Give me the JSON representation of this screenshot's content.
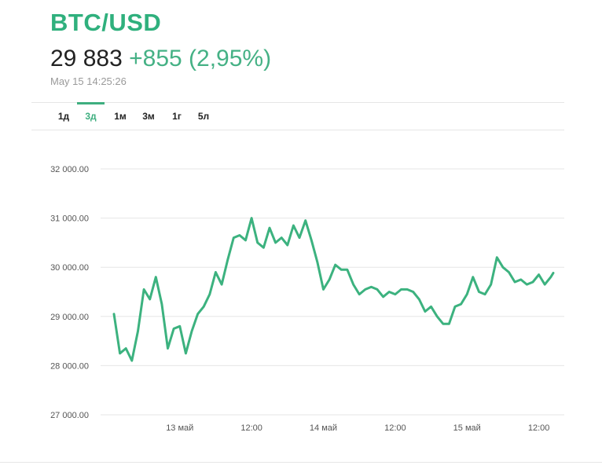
{
  "header": {
    "title": "BTC/USD",
    "price": "29 883",
    "change": "+855 (2,95%)",
    "timestamp": "May 15 14:25:26"
  },
  "tabs": [
    {
      "label": "1д",
      "active": false
    },
    {
      "label": "3д",
      "active": true
    },
    {
      "label": "1м",
      "active": false
    },
    {
      "label": "3м",
      "active": false
    },
    {
      "label": "1г",
      "active": false
    },
    {
      "label": "5л",
      "active": false
    }
  ],
  "colors": {
    "accent": "#3eae7f",
    "line": "#3cb27f",
    "grid": "#e6e6e6"
  },
  "chart_data": {
    "type": "line",
    "title": "",
    "xlabel": "",
    "ylabel": "",
    "ylim": [
      27000,
      32000
    ],
    "yticks": [
      32000,
      31000,
      30000,
      29000,
      28000,
      27000
    ],
    "ytick_labels": [
      "32 000.00",
      "31 000.00",
      "30 000.00",
      "29 000.00",
      "28 000.00",
      "27 000.00"
    ],
    "xlim": [
      "2023-05-12T13:00",
      "2023-05-15T14:25"
    ],
    "xticks": [
      "2023-05-13T00:00",
      "2023-05-13T12:00",
      "2023-05-14T00:00",
      "2023-05-14T12:00",
      "2023-05-15T00:00",
      "2023-05-15T12:00"
    ],
    "xtick_labels": [
      "13 май",
      "12:00",
      "14 май",
      "12:00",
      "15 май",
      "12:00"
    ],
    "grid": true,
    "series": [
      {
        "x": [
          "2023-05-12T13:00",
          "2023-05-12T14:00",
          "2023-05-12T15:00",
          "2023-05-12T16:00",
          "2023-05-12T17:00",
          "2023-05-12T18:00",
          "2023-05-12T19:00",
          "2023-05-12T20:00",
          "2023-05-12T21:00",
          "2023-05-12T22:00",
          "2023-05-12T23:00",
          "2023-05-13T00:00",
          "2023-05-13T01:00",
          "2023-05-13T02:00",
          "2023-05-13T03:00",
          "2023-05-13T04:00",
          "2023-05-13T05:00",
          "2023-05-13T06:00",
          "2023-05-13T07:00",
          "2023-05-13T08:00",
          "2023-05-13T09:00",
          "2023-05-13T10:00",
          "2023-05-13T11:00",
          "2023-05-13T12:00",
          "2023-05-13T13:00",
          "2023-05-13T14:00",
          "2023-05-13T15:00",
          "2023-05-13T16:00",
          "2023-05-13T17:00",
          "2023-05-13T18:00",
          "2023-05-13T19:00",
          "2023-05-13T20:00",
          "2023-05-13T21:00",
          "2023-05-13T22:00",
          "2023-05-13T23:00",
          "2023-05-14T00:00",
          "2023-05-14T01:00",
          "2023-05-14T02:00",
          "2023-05-14T03:00",
          "2023-05-14T04:00",
          "2023-05-14T05:00",
          "2023-05-14T06:00",
          "2023-05-14T07:00",
          "2023-05-14T08:00",
          "2023-05-14T09:00",
          "2023-05-14T10:00",
          "2023-05-14T11:00",
          "2023-05-14T12:00",
          "2023-05-14T13:00",
          "2023-05-14T14:00",
          "2023-05-14T15:00",
          "2023-05-14T16:00",
          "2023-05-14T17:00",
          "2023-05-14T18:00",
          "2023-05-14T19:00",
          "2023-05-14T20:00",
          "2023-05-14T21:00",
          "2023-05-14T22:00",
          "2023-05-14T23:00",
          "2023-05-15T00:00",
          "2023-05-15T01:00",
          "2023-05-15T02:00",
          "2023-05-15T03:00",
          "2023-05-15T04:00",
          "2023-05-15T05:00",
          "2023-05-15T06:00",
          "2023-05-15T07:00",
          "2023-05-15T08:00",
          "2023-05-15T09:00",
          "2023-05-15T10:00",
          "2023-05-15T11:00",
          "2023-05-15T12:00",
          "2023-05-15T13:00",
          "2023-05-15T14:00",
          "2023-05-15T14:25"
        ],
        "y": [
          29050,
          28250,
          28350,
          28100,
          28700,
          29550,
          29350,
          29800,
          29250,
          28350,
          28750,
          28800,
          28250,
          28700,
          29050,
          29200,
          29450,
          29900,
          29650,
          30150,
          30600,
          30650,
          30550,
          31000,
          30500,
          30400,
          30800,
          30500,
          30600,
          30450,
          30850,
          30600,
          30950,
          30550,
          30100,
          29550,
          29750,
          30050,
          29950,
          29950,
          29650,
          29450,
          29550,
          29600,
          29550,
          29400,
          29500,
          29450,
          29550,
          29550,
          29500,
          29350,
          29100,
          29200,
          29000,
          28850,
          28850,
          29200,
          29250,
          29450,
          29800,
          29500,
          29450,
          29650,
          30200,
          30000,
          29900,
          29700,
          29750,
          29650,
          29700,
          29850,
          29650,
          29800,
          29883
        ]
      }
    ]
  }
}
